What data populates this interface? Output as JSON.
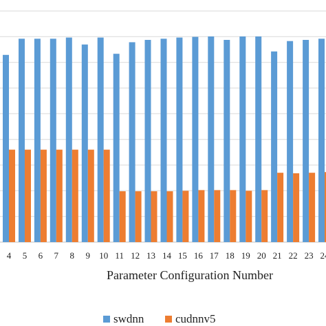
{
  "chart_data": {
    "type": "bar",
    "xlabel": "Parameter Configuration Number",
    "ylabel": "",
    "categories": [
      "4",
      "5",
      "6",
      "7",
      "8",
      "9",
      "10",
      "11",
      "12",
      "13",
      "14",
      "15",
      "16",
      "17",
      "18",
      "19",
      "20",
      "21",
      "22",
      "23",
      "24"
    ],
    "series": [
      {
        "name": "swdnn",
        "color": "#5B9BD5",
        "values": [
          0.81,
          0.88,
          0.88,
          0.88,
          0.885,
          0.855,
          0.885,
          0.815,
          0.865,
          0.875,
          0.88,
          0.885,
          0.888,
          0.89,
          0.875,
          0.89,
          0.89,
          0.825,
          0.87,
          0.875,
          0.88
        ]
      },
      {
        "name": "cudnnv5",
        "color": "#ED7D31",
        "values": [
          0.4,
          0.4,
          0.4,
          0.4,
          0.4,
          0.4,
          0.4,
          0.22,
          0.22,
          0.22,
          0.22,
          0.222,
          0.225,
          0.225,
          0.225,
          0.222,
          0.225,
          0.3,
          0.298,
          0.3,
          0.303
        ]
      }
    ],
    "ylim": [
      0,
      1
    ],
    "grid": true,
    "legend": "bottom"
  }
}
